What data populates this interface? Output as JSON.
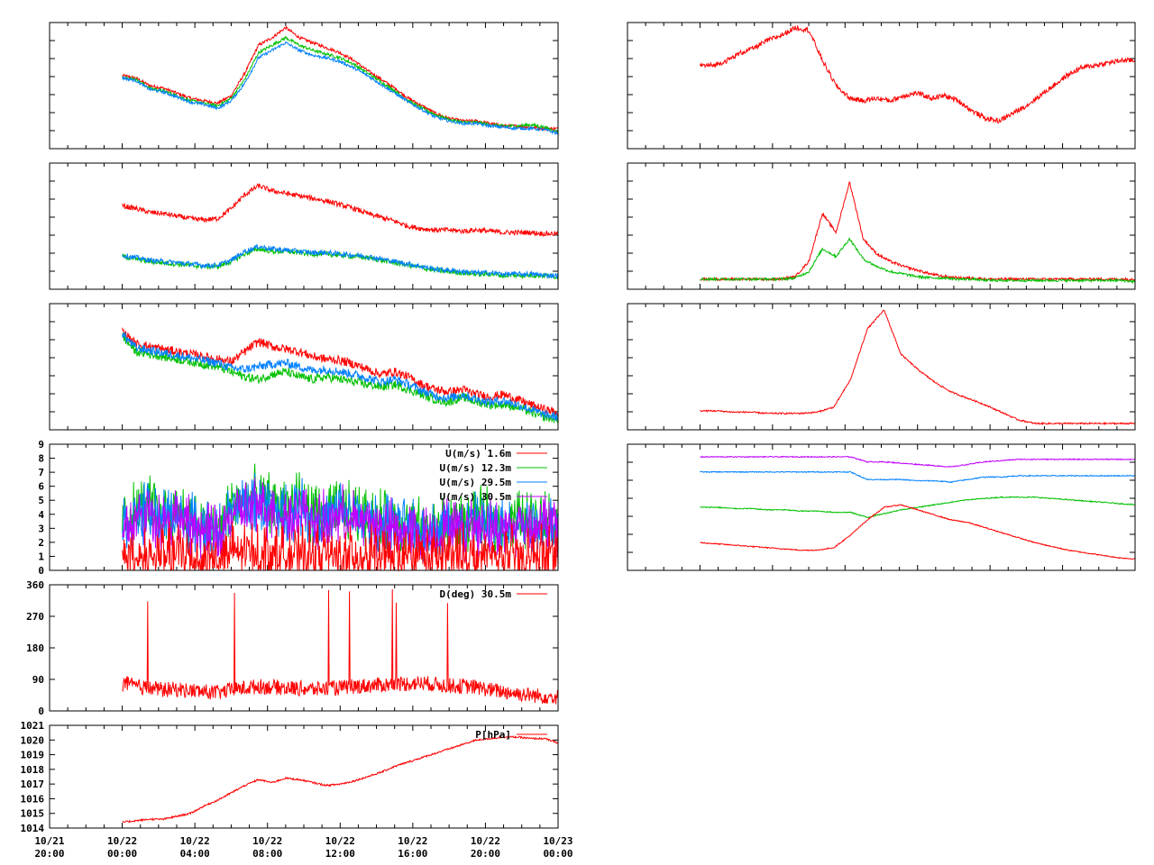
{
  "colors": {
    "red": "#ff0000",
    "green": "#00c000",
    "blue": "#0080ff",
    "magenta": "#c000ff",
    "frame": "#000000"
  },
  "chart_data": [
    {
      "id": "left-1",
      "type": "line",
      "series": [
        {
          "color": "#ff0000",
          "values": [
            0.58,
            0.56,
            0.5,
            0.48,
            0.44,
            0.4,
            0.38,
            0.36,
            0.42,
            0.6,
            0.82,
            0.88,
            0.96,
            0.88,
            0.84,
            0.8,
            0.76,
            0.7,
            0.62,
            0.55,
            0.48,
            0.4,
            0.34,
            0.28,
            0.24,
            0.22,
            0.22,
            0.2,
            0.18,
            0.18,
            0.17,
            0.16,
            0.16
          ]
        },
        {
          "color": "#00c000",
          "values": [
            0.57,
            0.55,
            0.48,
            0.46,
            0.42,
            0.38,
            0.36,
            0.34,
            0.4,
            0.55,
            0.76,
            0.82,
            0.88,
            0.82,
            0.78,
            0.75,
            0.72,
            0.67,
            0.6,
            0.53,
            0.46,
            0.38,
            0.32,
            0.27,
            0.23,
            0.21,
            0.21,
            0.19,
            0.18,
            0.18,
            0.19,
            0.17,
            0.13
          ]
        },
        {
          "color": "#0080ff",
          "values": [
            0.56,
            0.54,
            0.47,
            0.45,
            0.41,
            0.37,
            0.35,
            0.32,
            0.38,
            0.52,
            0.72,
            0.78,
            0.84,
            0.78,
            0.74,
            0.72,
            0.69,
            0.64,
            0.58,
            0.51,
            0.44,
            0.37,
            0.31,
            0.25,
            0.22,
            0.2,
            0.2,
            0.18,
            0.17,
            0.16,
            0.16,
            0.15,
            0.12
          ]
        }
      ]
    },
    {
      "id": "left-2",
      "type": "line",
      "series": [
        {
          "color": "#ff0000",
          "values": [
            0.66,
            0.64,
            0.61,
            0.6,
            0.58,
            0.56,
            0.55,
            0.56,
            0.64,
            0.75,
            0.82,
            0.78,
            0.76,
            0.74,
            0.72,
            0.7,
            0.67,
            0.64,
            0.6,
            0.57,
            0.54,
            0.5,
            0.48,
            0.47,
            0.47,
            0.46,
            0.47,
            0.46,
            0.45,
            0.45,
            0.45,
            0.44,
            0.44
          ]
        },
        {
          "color": "#00c000",
          "values": [
            0.26,
            0.24,
            0.22,
            0.21,
            0.2,
            0.19,
            0.18,
            0.18,
            0.22,
            0.28,
            0.32,
            0.3,
            0.3,
            0.29,
            0.28,
            0.28,
            0.27,
            0.26,
            0.25,
            0.23,
            0.21,
            0.19,
            0.17,
            0.15,
            0.14,
            0.13,
            0.12,
            0.12,
            0.11,
            0.11,
            0.11,
            0.11,
            0.1
          ]
        },
        {
          "color": "#0080ff",
          "values": [
            0.27,
            0.25,
            0.23,
            0.22,
            0.21,
            0.2,
            0.19,
            0.19,
            0.23,
            0.3,
            0.34,
            0.32,
            0.31,
            0.3,
            0.29,
            0.29,
            0.28,
            0.27,
            0.26,
            0.24,
            0.22,
            0.2,
            0.18,
            0.16,
            0.15,
            0.14,
            0.13,
            0.13,
            0.12,
            0.12,
            0.12,
            0.11,
            0.11
          ]
        }
      ]
    },
    {
      "id": "left-3",
      "type": "line",
      "series": [
        {
          "color": "#ff0000",
          "values": [
            0.78,
            0.68,
            0.66,
            0.64,
            0.62,
            0.6,
            0.58,
            0.56,
            0.54,
            0.62,
            0.7,
            0.66,
            0.64,
            0.62,
            0.58,
            0.56,
            0.55,
            0.52,
            0.48,
            0.44,
            0.46,
            0.42,
            0.36,
            0.32,
            0.3,
            0.32,
            0.28,
            0.26,
            0.28,
            0.24,
            0.2,
            0.16,
            0.14
          ]
        },
        {
          "color": "#00c000",
          "values": [
            0.74,
            0.62,
            0.6,
            0.58,
            0.56,
            0.54,
            0.52,
            0.5,
            0.46,
            0.42,
            0.4,
            0.44,
            0.46,
            0.42,
            0.4,
            0.42,
            0.4,
            0.38,
            0.36,
            0.34,
            0.36,
            0.32,
            0.28,
            0.24,
            0.22,
            0.26,
            0.22,
            0.2,
            0.2,
            0.18,
            0.14,
            0.1,
            0.08
          ]
        },
        {
          "color": "#0080ff",
          "values": [
            0.76,
            0.65,
            0.63,
            0.61,
            0.59,
            0.57,
            0.55,
            0.53,
            0.49,
            0.48,
            0.5,
            0.52,
            0.53,
            0.5,
            0.47,
            0.48,
            0.46,
            0.44,
            0.41,
            0.38,
            0.4,
            0.36,
            0.31,
            0.27,
            0.25,
            0.28,
            0.24,
            0.22,
            0.23,
            0.2,
            0.16,
            0.12,
            0.1
          ]
        }
      ]
    },
    {
      "id": "left-4",
      "type": "line",
      "ylim": [
        0,
        9
      ],
      "y_ticks": [
        "0",
        "1",
        "2",
        "3",
        "4",
        "5",
        "6",
        "7",
        "8",
        "9"
      ],
      "legend": [
        {
          "label": "U(m/s)  1.6m",
          "color": "#ff0000"
        },
        {
          "label": "U(m/s) 12.3m",
          "color": "#00c000"
        },
        {
          "label": "U(m/s) 29.5m",
          "color": "#0080ff"
        },
        {
          "label": "U(m/s) 30.5m",
          "color": "#c000ff"
        }
      ],
      "series": [
        {
          "color": "#00c000",
          "values": [
            3.5,
            4.2,
            4.8,
            3.9,
            4.5,
            3.6,
            3.2,
            2.8,
            4.6,
            5.0,
            5.2,
            4.9,
            4.4,
            5.1,
            4.0,
            3.8,
            4.6,
            4.2,
            3.9,
            3.6,
            3.4,
            3.2,
            3.0,
            2.9,
            3.6,
            3.2,
            3.8,
            3.5,
            3.2,
            3.8,
            3.6,
            3.9,
            3.4
          ]
        },
        {
          "color": "#0080ff",
          "values": [
            3.2,
            3.8,
            4.3,
            3.6,
            4.1,
            3.3,
            3.0,
            2.6,
            4.2,
            4.6,
            4.8,
            4.5,
            4.1,
            4.7,
            3.7,
            3.5,
            4.2,
            3.9,
            3.6,
            3.3,
            3.1,
            3.0,
            2.8,
            2.7,
            3.3,
            3.0,
            3.5,
            3.2,
            3.0,
            3.5,
            3.3,
            3.6,
            3.1
          ]
        },
        {
          "color": "#c000ff",
          "values": [
            3.0,
            3.6,
            4.0,
            3.4,
            3.8,
            3.1,
            2.8,
            2.5,
            3.9,
            4.3,
            4.5,
            4.2,
            3.8,
            4.4,
            3.5,
            3.3,
            3.9,
            3.6,
            3.4,
            3.1,
            2.9,
            2.8,
            2.6,
            2.5,
            3.1,
            2.8,
            3.3,
            3.0,
            2.8,
            3.3,
            3.1,
            3.4,
            2.9
          ]
        },
        {
          "color": "#ff0000",
          "values": [
            1.2,
            1.0,
            0.9,
            1.1,
            1.3,
            1.0,
            0.8,
            0.9,
            1.2,
            1.4,
            1.3,
            1.2,
            1.1,
            1.0,
            1.2,
            1.1,
            0.9,
            1.0,
            1.1,
            1.0,
            0.9,
            1.0,
            1.1,
            0.9,
            1.0,
            1.2,
            0.8,
            1.0,
            1.1,
            0.9,
            1.0,
            1.2,
            1.1
          ]
        }
      ]
    },
    {
      "id": "left-5",
      "type": "line",
      "ylim": [
        0,
        360
      ],
      "y_ticks": [
        "0",
        "90",
        "180",
        "270",
        "360"
      ],
      "legend": [
        {
          "label": "D(deg)  30.5m",
          "color": "#ff0000"
        }
      ],
      "series": [
        {
          "color": "#ff0000",
          "values": [
            80,
            70,
            65,
            60,
            62,
            58,
            55,
            52,
            60,
            65,
            70,
            68,
            66,
            64,
            62,
            64,
            66,
            70,
            72,
            74,
            76,
            78,
            80,
            76,
            72,
            70,
            68,
            60,
            55,
            50,
            45,
            42,
            40
          ]
        }
      ]
    },
    {
      "id": "left-6",
      "type": "line",
      "ylim": [
        1014,
        1021
      ],
      "y_ticks": [
        "1014",
        "1015",
        "1016",
        "1017",
        "1018",
        "1019",
        "1020",
        "1021"
      ],
      "legend": [
        {
          "label": "P[hPa]",
          "color": "#ff0000"
        }
      ],
      "series": [
        {
          "color": "#ff0000",
          "values": [
            1014.4,
            1014.5,
            1014.6,
            1014.6,
            1014.8,
            1015.0,
            1015.5,
            1015.9,
            1016.4,
            1016.9,
            1017.3,
            1017.1,
            1017.4,
            1017.3,
            1017.1,
            1016.9,
            1017.0,
            1017.2,
            1017.5,
            1017.8,
            1018.2,
            1018.5,
            1018.8,
            1019.1,
            1019.4,
            1019.7,
            1020.0,
            1020.1,
            1020.2,
            1020.2,
            1020.1,
            1020.1,
            1019.8
          ]
        }
      ]
    },
    {
      "id": "right-1",
      "type": "line",
      "series": [
        {
          "color": "#ff0000",
          "values": [
            0.66,
            0.66,
            0.7,
            0.76,
            0.8,
            0.86,
            0.9,
            0.96,
            0.94,
            0.7,
            0.5,
            0.4,
            0.38,
            0.4,
            0.38,
            0.42,
            0.44,
            0.4,
            0.42,
            0.38,
            0.3,
            0.24,
            0.22,
            0.28,
            0.34,
            0.42,
            0.5,
            0.58,
            0.64,
            0.66,
            0.68,
            0.7,
            0.7
          ]
        }
      ]
    },
    {
      "id": "right-2",
      "type": "line",
      "series": [
        {
          "color": "#ff0000",
          "values": [
            0.08,
            0.08,
            0.08,
            0.08,
            0.08,
            0.08,
            0.08,
            0.1,
            0.22,
            0.6,
            0.45,
            0.85,
            0.4,
            0.28,
            0.22,
            0.18,
            0.15,
            0.12,
            0.1,
            0.09,
            0.09,
            0.08,
            0.08,
            0.08,
            0.08,
            0.08,
            0.08,
            0.08,
            0.08,
            0.08,
            0.08,
            0.08,
            0.08
          ]
        },
        {
          "color": "#00c000",
          "values": [
            0.08,
            0.08,
            0.08,
            0.08,
            0.08,
            0.08,
            0.08,
            0.09,
            0.14,
            0.32,
            0.26,
            0.4,
            0.24,
            0.18,
            0.14,
            0.12,
            0.1,
            0.09,
            0.09,
            0.08,
            0.08,
            0.07,
            0.07,
            0.07,
            0.07,
            0.07,
            0.07,
            0.07,
            0.07,
            0.07,
            0.07,
            0.07,
            0.06
          ]
        }
      ]
    },
    {
      "id": "right-3",
      "type": "line",
      "series": [
        {
          "color": "#ff0000",
          "values": [
            0.15,
            0.15,
            0.14,
            0.14,
            0.13,
            0.13,
            0.13,
            0.14,
            0.18,
            0.4,
            0.8,
            0.95,
            0.6,
            0.48,
            0.38,
            0.3,
            0.25,
            0.2,
            0.14,
            0.08,
            0.05,
            0.05,
            0.05,
            0.05,
            0.05,
            0.05,
            0.05
          ]
        }
      ]
    },
    {
      "id": "right-4",
      "type": "line",
      "series": [
        {
          "color": "#c000ff",
          "values": [
            0.9,
            0.9,
            0.9,
            0.9,
            0.9,
            0.9,
            0.9,
            0.9,
            0.9,
            0.9,
            0.86,
            0.86,
            0.85,
            0.84,
            0.83,
            0.82,
            0.84,
            0.86,
            0.87,
            0.88,
            0.88,
            0.88,
            0.88,
            0.88,
            0.88,
            0.88,
            0.88
          ]
        },
        {
          "color": "#0080ff",
          "values": [
            0.78,
            0.78,
            0.78,
            0.78,
            0.78,
            0.78,
            0.78,
            0.78,
            0.78,
            0.78,
            0.72,
            0.72,
            0.72,
            0.71,
            0.71,
            0.7,
            0.72,
            0.74,
            0.74,
            0.75,
            0.75,
            0.75,
            0.75,
            0.75,
            0.75,
            0.75,
            0.75
          ]
        },
        {
          "color": "#00c000",
          "values": [
            0.5,
            0.5,
            0.49,
            0.49,
            0.48,
            0.48,
            0.47,
            0.47,
            0.46,
            0.46,
            0.42,
            0.45,
            0.48,
            0.5,
            0.52,
            0.54,
            0.56,
            0.57,
            0.58,
            0.58,
            0.58,
            0.57,
            0.56,
            0.55,
            0.54,
            0.53,
            0.52
          ]
        },
        {
          "color": "#ff0000",
          "values": [
            0.22,
            0.21,
            0.2,
            0.19,
            0.18,
            0.17,
            0.16,
            0.16,
            0.18,
            0.28,
            0.4,
            0.5,
            0.52,
            0.48,
            0.44,
            0.4,
            0.38,
            0.34,
            0.3,
            0.26,
            0.22,
            0.19,
            0.16,
            0.14,
            0.12,
            0.1,
            0.09
          ]
        }
      ]
    }
  ],
  "x_axis": {
    "ticks": [
      {
        "line1": "10/21",
        "line2": "20:00"
      },
      {
        "line1": "10/22",
        "line2": "00:00"
      },
      {
        "line1": "10/22",
        "line2": "04:00"
      },
      {
        "line1": "10/22",
        "line2": "08:00"
      },
      {
        "line1": "10/22",
        "line2": "12:00"
      },
      {
        "line1": "10/22",
        "line2": "16:00"
      },
      {
        "line1": "10/22",
        "line2": "20:00"
      },
      {
        "line1": "10/23",
        "line2": "00:00"
      }
    ]
  }
}
